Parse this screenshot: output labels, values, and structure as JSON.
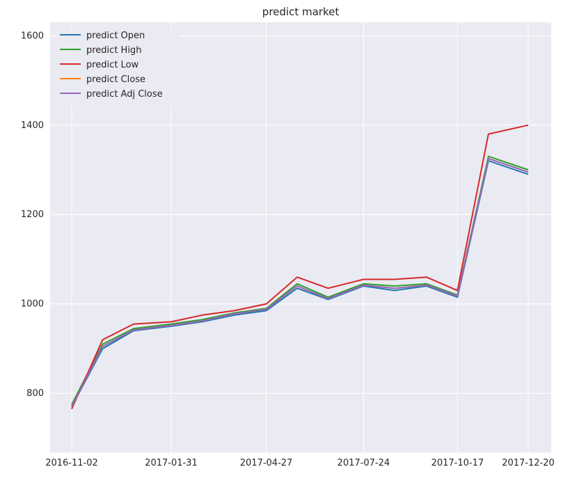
{
  "chart_data": {
    "type": "line",
    "title": "predict market",
    "xlabel": "",
    "ylabel": "",
    "x_start": "2016-11-02",
    "x_end": "2017-12-20",
    "x_ticks": [
      "2016-11-02",
      "2017-01-31",
      "2017-04-27",
      "2017-07-24",
      "2017-10-17",
      "2017-12-20"
    ],
    "y_ticks": [
      800,
      1000,
      1200,
      1400,
      1600
    ],
    "ylim": [
      668,
      1630
    ],
    "grid": true,
    "legend_position": "upper-left",
    "series": [
      {
        "name": "predict Open",
        "color": "#1f77b4"
      },
      {
        "name": "predict High",
        "color": "#2ca02c"
      },
      {
        "name": "predict Low",
        "color": "#d62728"
      },
      {
        "name": "predict Close",
        "color": "#ff7f0e"
      },
      {
        "name": "predict Adj Close",
        "color": "#9467bd"
      }
    ],
    "dates": [
      "2016-11-02",
      "2016-11-30",
      "2016-12-28",
      "2017-01-31",
      "2017-02-28",
      "2017-03-29",
      "2017-04-27",
      "2017-05-25",
      "2017-06-22",
      "2017-07-24",
      "2017-08-21",
      "2017-09-19",
      "2017-10-17",
      "2017-11-14",
      "2017-12-20"
    ],
    "values": [
      [
        770,
        900,
        940,
        950,
        960,
        975,
        985,
        1035,
        1010,
        1040,
        1030,
        1040,
        1015,
        1320,
        1290
      ],
      [
        775,
        910,
        945,
        955,
        965,
        980,
        990,
        1045,
        1015,
        1045,
        1040,
        1045,
        1020,
        1330,
        1300
      ],
      [
        765,
        920,
        955,
        960,
        975,
        985,
        1000,
        1060,
        1035,
        1055,
        1055,
        1060,
        1030,
        1380,
        1400
      ],
      [
        770,
        905,
        942,
        952,
        962,
        978,
        988,
        1040,
        1012,
        1042,
        1035,
        1042,
        1018,
        1325,
        1295
      ],
      [
        770,
        905,
        942,
        952,
        962,
        978,
        988,
        1040,
        1012,
        1042,
        1035,
        1042,
        1018,
        1325,
        1295
      ]
    ]
  }
}
